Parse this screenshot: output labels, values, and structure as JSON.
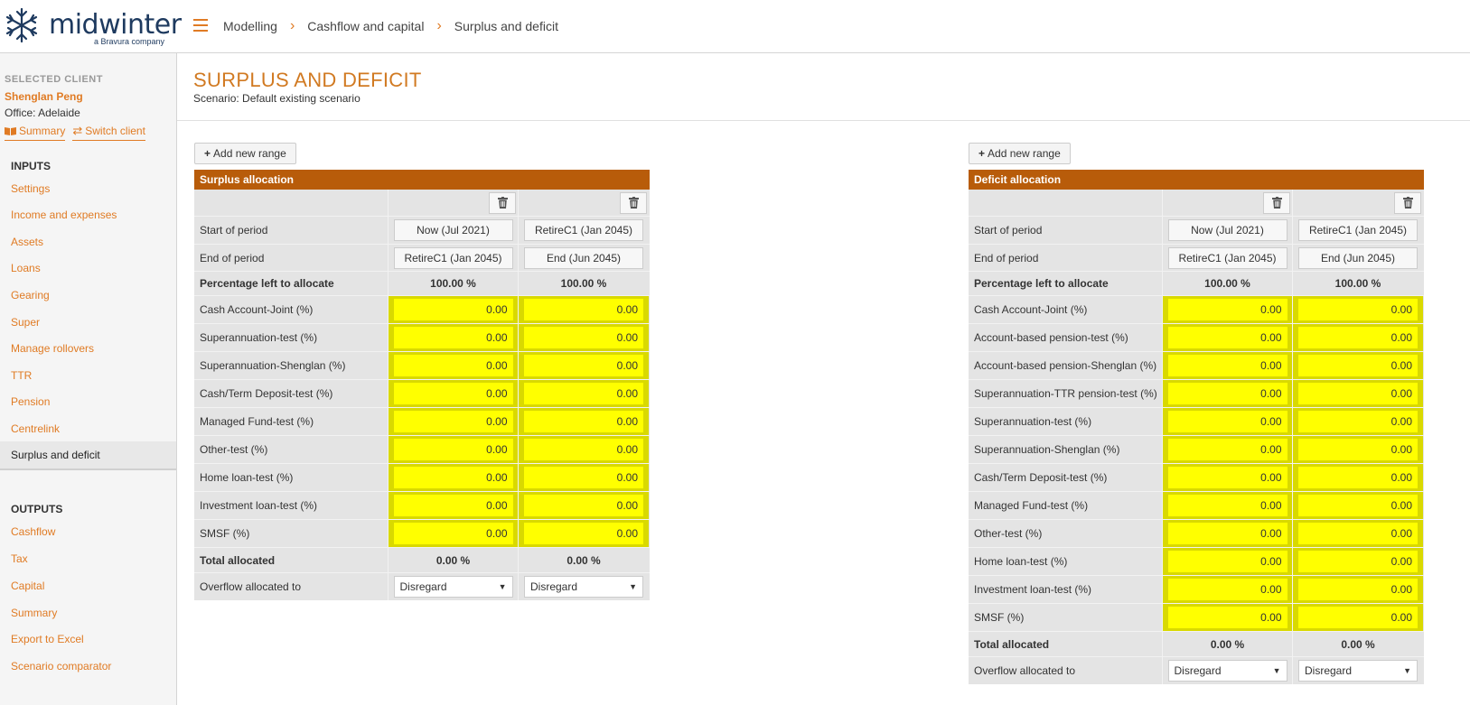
{
  "app": {
    "logo_text": "midwinter",
    "logo_sub": "a Bravura company"
  },
  "breadcrumb": [
    "Modelling",
    "Cashflow and capital",
    "Surplus and deficit"
  ],
  "sidebar": {
    "selected_client_label": "SELECTED CLIENT",
    "client_name": "Shenglan Peng",
    "office": "Office: Adelaide",
    "summary_link": "Summary",
    "switch_link": "Switch client",
    "inputs_heading": "INPUTS",
    "inputs": [
      "Settings",
      "Income and expenses",
      "Assets",
      "Loans",
      "Gearing",
      "Super",
      "Manage rollovers",
      "TTR",
      "Pension",
      "Centrelink",
      "Surplus and deficit"
    ],
    "active_input": "Surplus and deficit",
    "outputs_heading": "OUTPUTS",
    "outputs": [
      "Cashflow",
      "Tax",
      "Capital",
      "Summary",
      "Export to Excel",
      "Scenario comparator"
    ]
  },
  "page": {
    "title": "SURPLUS AND DEFICIT",
    "scenario": "Scenario: Default existing scenario"
  },
  "add_range_label": "Add new range",
  "surplus": {
    "title": "Surplus allocation",
    "start_label": "Start of period",
    "end_label": "End of period",
    "pct_label": "Percentage left to allocate",
    "starts": [
      "Now (Jul 2021)",
      "RetireC1 (Jan 2045)"
    ],
    "ends": [
      "RetireC1 (Jan 2045)",
      "End (Jun 2045)"
    ],
    "pct_left": [
      "100.00 %",
      "100.00 %"
    ],
    "rows": [
      {
        "label": "Cash Account-Joint (%)",
        "values": [
          "0.00",
          "0.00"
        ]
      },
      {
        "label": "Superannuation-test (%)",
        "values": [
          "0.00",
          "0.00"
        ]
      },
      {
        "label": "Superannuation-Shenglan (%)",
        "values": [
          "0.00",
          "0.00"
        ]
      },
      {
        "label": "Cash/Term Deposit-test (%)",
        "values": [
          "0.00",
          "0.00"
        ]
      },
      {
        "label": "Managed Fund-test (%)",
        "values": [
          "0.00",
          "0.00"
        ]
      },
      {
        "label": "Other-test (%)",
        "values": [
          "0.00",
          "0.00"
        ]
      },
      {
        "label": "Home loan-test (%)",
        "values": [
          "0.00",
          "0.00"
        ]
      },
      {
        "label": "Investment loan-test (%)",
        "values": [
          "0.00",
          "0.00"
        ]
      },
      {
        "label": "SMSF (%)",
        "values": [
          "0.00",
          "0.00"
        ]
      }
    ],
    "total_label": "Total allocated",
    "totals": [
      "0.00 %",
      "0.00 %"
    ],
    "overflow_label": "Overflow allocated to",
    "overflow": [
      "Disregard",
      "Disregard"
    ]
  },
  "deficit": {
    "title": "Deficit allocation",
    "start_label": "Start of period",
    "end_label": "End of period",
    "pct_label": "Percentage left to allocate",
    "starts": [
      "Now (Jul 2021)",
      "RetireC1 (Jan 2045)"
    ],
    "ends": [
      "RetireC1 (Jan 2045)",
      "End (Jun 2045)"
    ],
    "pct_left": [
      "100.00 %",
      "100.00 %"
    ],
    "rows": [
      {
        "label": "Cash Account-Joint (%)",
        "values": [
          "0.00",
          "0.00"
        ]
      },
      {
        "label": "Account-based pension-test (%)",
        "values": [
          "0.00",
          "0.00"
        ]
      },
      {
        "label": "Account-based pension-Shenglan (%)",
        "values": [
          "0.00",
          "0.00"
        ]
      },
      {
        "label": "Superannuation-TTR pension-test (%)",
        "values": [
          "0.00",
          "0.00"
        ]
      },
      {
        "label": "Superannuation-test (%)",
        "values": [
          "0.00",
          "0.00"
        ]
      },
      {
        "label": "Superannuation-Shenglan (%)",
        "values": [
          "0.00",
          "0.00"
        ]
      },
      {
        "label": "Cash/Term Deposit-test (%)",
        "values": [
          "0.00",
          "0.00"
        ]
      },
      {
        "label": "Managed Fund-test (%)",
        "values": [
          "0.00",
          "0.00"
        ]
      },
      {
        "label": "Other-test (%)",
        "values": [
          "0.00",
          "0.00"
        ]
      },
      {
        "label": "Home loan-test (%)",
        "values": [
          "0.00",
          "0.00"
        ]
      },
      {
        "label": "Investment loan-test (%)",
        "values": [
          "0.00",
          "0.00"
        ]
      },
      {
        "label": "SMSF (%)",
        "values": [
          "0.00",
          "0.00"
        ]
      }
    ],
    "total_label": "Total allocated",
    "totals": [
      "0.00 %",
      "0.00 %"
    ],
    "overflow_label": "Overflow allocated to",
    "overflow": [
      "Disregard",
      "Disregard"
    ]
  },
  "colors": {
    "accent": "#e07b24",
    "panel_header": "#b85c0a",
    "input_highlight": "#ffff00"
  }
}
